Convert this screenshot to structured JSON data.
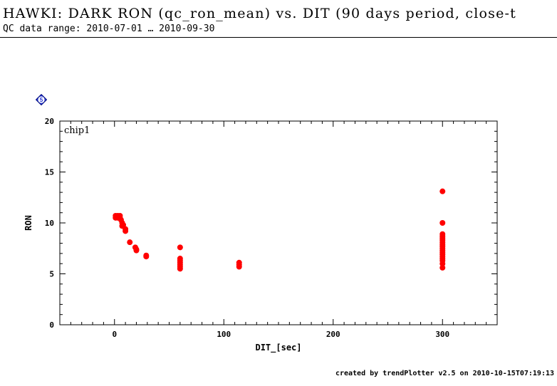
{
  "header": {
    "title": "HAWKI: DARK RON (qc_ron_mean) vs. DIT (90 days period, close-t",
    "subtitle": "QC data range: 2010-07-01 … 2010-09-30"
  },
  "badge": {
    "label": "5",
    "color": "#1f2fd0"
  },
  "footer": {
    "text": "created by trendPlotter v2.5 on 2010-10-15T07:19:13"
  },
  "chart_data": {
    "type": "scatter",
    "title": "",
    "panel_label": "chip1",
    "xlabel": "DIT_[sec]",
    "ylabel": "RON",
    "xlim": [
      -50,
      350
    ],
    "ylim": [
      0,
      20
    ],
    "x_ticks": [
      0,
      100,
      200,
      300
    ],
    "y_ticks": [
      0,
      5,
      10,
      15,
      20
    ],
    "grid": false,
    "legend": "none",
    "marker_color": "#ff0000",
    "series": [
      {
        "points": [
          [
            1,
            10.7
          ],
          [
            1,
            10.5
          ],
          [
            2,
            10.6
          ],
          [
            3,
            10.5
          ],
          [
            3,
            10.7
          ],
          [
            4,
            10.6
          ],
          [
            5,
            10.5
          ],
          [
            5,
            10.7
          ],
          [
            6,
            10.3
          ],
          [
            7,
            10.0
          ],
          [
            7,
            9.7
          ],
          [
            8,
            9.8
          ],
          [
            10,
            9.4
          ],
          [
            10,
            9.2
          ],
          [
            14,
            8.1
          ],
          [
            19,
            7.6
          ],
          [
            20,
            7.4
          ],
          [
            20,
            7.3
          ],
          [
            29,
            6.8
          ],
          [
            29,
            6.7
          ],
          [
            60,
            7.6
          ],
          [
            60,
            6.5
          ],
          [
            60,
            6.3
          ],
          [
            60,
            6.1
          ],
          [
            60,
            5.9
          ],
          [
            60,
            5.7
          ],
          [
            60,
            5.5
          ],
          [
            114,
            6.1
          ],
          [
            114,
            5.9
          ],
          [
            114,
            5.7
          ],
          [
            300,
            13.1
          ],
          [
            300,
            10.0
          ],
          [
            300,
            8.9
          ],
          [
            300,
            8.7
          ],
          [
            300,
            8.5
          ],
          [
            300,
            8.3
          ],
          [
            300,
            8.1
          ],
          [
            300,
            7.9
          ],
          [
            300,
            7.7
          ],
          [
            300,
            7.5
          ],
          [
            300,
            7.3
          ],
          [
            300,
            7.1
          ],
          [
            300,
            6.9
          ],
          [
            300,
            6.7
          ],
          [
            300,
            6.5
          ],
          [
            300,
            6.3
          ],
          [
            300,
            6.0
          ],
          [
            300,
            5.6
          ]
        ]
      }
    ]
  }
}
